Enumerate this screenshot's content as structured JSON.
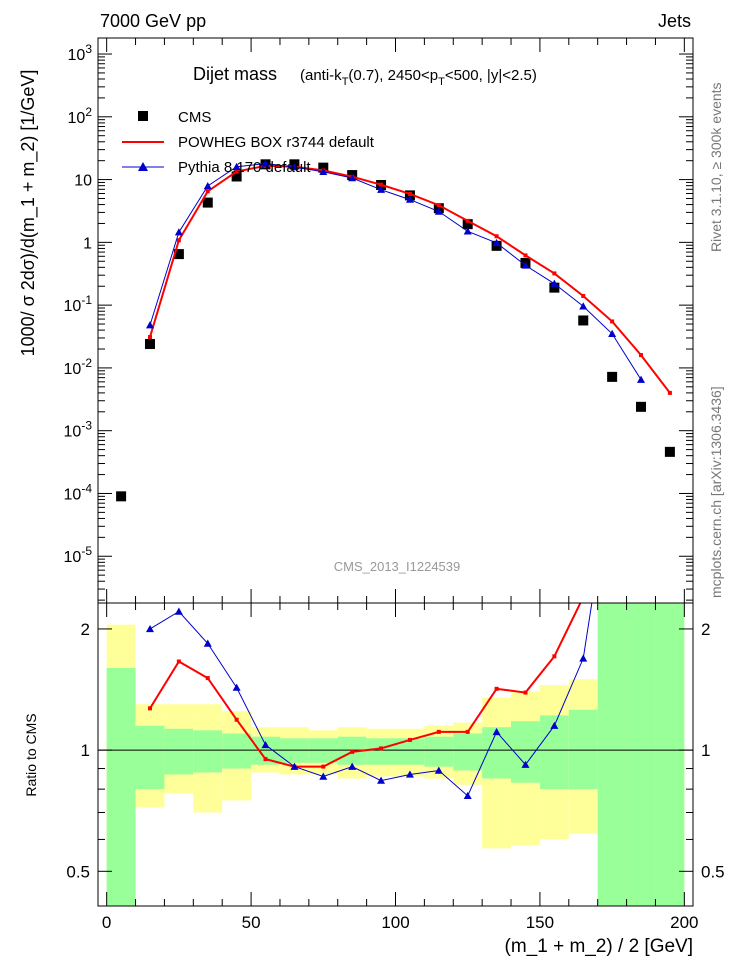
{
  "header": {
    "left": "7000 GeV pp",
    "right": "Jets"
  },
  "side_labels": {
    "top": "Rivet 3.1.10, ≥ 300k events",
    "bottom": "mcplots.cern.ch [arXiv:1306.3436]"
  },
  "colors": {
    "data": "#000000",
    "powheg": "#ff0000",
    "pythia": "#0000cc",
    "band_inner": "#99ff99",
    "band_outer": "#ffff99"
  },
  "chart_data": [
    {
      "type": "scatter",
      "title": "Dijet mass",
      "subtitle": "(anti-kT(0.7), 2450<pT<500, |y|<2.5)",
      "watermark": "CMS_2013_I1224539",
      "ylabel": "1000/σ 2dσ)/d(m_1 + m_2) [1/GeV]",
      "xlabel": "",
      "yscale": "log",
      "xlim": [
        -3,
        203
      ],
      "ylim": [
        1.8e-06,
        1800
      ],
      "y_ticks": [
        "10^-5",
        "10^-4",
        "10^-3",
        "10^-2",
        "10^-1",
        "1",
        "10",
        "10^2",
        "10^3"
      ],
      "legend": [
        "CMS",
        "POWHEG BOX r3744 default",
        "Pythia 8.170 default"
      ],
      "series": [
        {
          "name": "CMS",
          "x": [
            5,
            15,
            25,
            35,
            45,
            55,
            65,
            75,
            85,
            95,
            105,
            115,
            125,
            135,
            145,
            155,
            165,
            175,
            185,
            195
          ],
          "values": [
            9e-05,
            0.024,
            0.65,
            4.3,
            11.2,
            17.5,
            17.5,
            15.5,
            11.8,
            8.2,
            5.6,
            3.5,
            1.95,
            0.88,
            0.47,
            0.19,
            0.057,
            0.0072,
            0.0024,
            0.00046
          ]
        },
        {
          "name": "POWHEG BOX r3744 default",
          "x": [
            15,
            25,
            35,
            45,
            55,
            65,
            75,
            85,
            95,
            105,
            115,
            125,
            135,
            145,
            155,
            165,
            175,
            185,
            195
          ],
          "values": [
            0.031,
            1.08,
            6.5,
            13.4,
            16.6,
            16.0,
            14.0,
            11.1,
            8.3,
            5.9,
            3.9,
            2.2,
            1.25,
            0.62,
            0.32,
            0.14,
            0.055,
            0.016,
            0.004
          ]
        },
        {
          "name": "Pythia 8.170 default",
          "x": [
            15,
            25,
            35,
            45,
            55,
            65,
            75,
            85,
            95,
            105,
            115,
            125,
            135,
            145,
            155,
            165,
            175,
            185
          ],
          "values": [
            0.048,
            1.45,
            7.9,
            16.0,
            18.0,
            15.8,
            13.3,
            10.6,
            6.9,
            4.8,
            3.1,
            1.5,
            0.98,
            0.43,
            0.22,
            0.096,
            0.035,
            0.0065
          ]
        }
      ]
    },
    {
      "type": "line",
      "ylabel": "Ratio to CMS",
      "xlabel": "(m_1 + m_2) / 2 [GeV]",
      "yscale": "log",
      "xlim": [
        -3,
        203
      ],
      "ylim": [
        0.41,
        2.32
      ],
      "x_ticks": [
        "0",
        "50",
        "100",
        "150",
        "200"
      ],
      "y_ticks": [
        "0.5",
        "1",
        "2"
      ],
      "bins": [
        [
          0,
          10
        ],
        [
          10,
          20
        ],
        [
          20,
          30
        ],
        [
          30,
          40
        ],
        [
          40,
          50
        ],
        [
          50,
          60
        ],
        [
          60,
          70
        ],
        [
          70,
          80
        ],
        [
          80,
          90
        ],
        [
          90,
          100
        ],
        [
          100,
          110
        ],
        [
          110,
          120
        ],
        [
          120,
          130
        ],
        [
          130,
          140
        ],
        [
          140,
          150
        ],
        [
          150,
          160
        ],
        [
          160,
          170
        ],
        [
          170,
          180
        ],
        [
          180,
          190
        ],
        [
          190,
          200
        ]
      ],
      "band_inner": [
        [
          0.35,
          1.6
        ],
        [
          0.8,
          1.15
        ],
        [
          0.87,
          1.13
        ],
        [
          0.88,
          1.12
        ],
        [
          0.9,
          1.1
        ],
        [
          0.92,
          1.08
        ],
        [
          0.93,
          1.07
        ],
        [
          0.93,
          1.07
        ],
        [
          0.92,
          1.08
        ],
        [
          0.92,
          1.07
        ],
        [
          0.92,
          1.07
        ],
        [
          0.91,
          1.08
        ],
        [
          0.89,
          1.1
        ],
        [
          0.85,
          1.14
        ],
        [
          0.83,
          1.18
        ],
        [
          0.8,
          1.22
        ],
        [
          0.8,
          1.26
        ],
        [
          0.35,
          2.5
        ],
        [
          0.35,
          2.5
        ],
        [
          0.35,
          2.5
        ]
      ],
      "band_outer": [
        [
          0.35,
          2.05
        ],
        [
          0.72,
          1.3
        ],
        [
          0.78,
          1.3
        ],
        [
          0.7,
          1.3
        ],
        [
          0.75,
          1.25
        ],
        [
          0.88,
          1.14
        ],
        [
          0.87,
          1.14
        ],
        [
          0.87,
          1.12
        ],
        [
          0.85,
          1.14
        ],
        [
          0.86,
          1.13
        ],
        [
          0.86,
          1.13
        ],
        [
          0.85,
          1.15
        ],
        [
          0.82,
          1.17
        ],
        [
          0.57,
          1.35
        ],
        [
          0.58,
          1.4
        ],
        [
          0.6,
          1.45
        ],
        [
          0.62,
          1.5
        ],
        [
          0.35,
          2.5
        ],
        [
          0.35,
          2.5
        ],
        [
          0.35,
          2.5
        ]
      ],
      "series": [
        {
          "name": "POWHEG BOX r3744 default",
          "x": [
            15,
            25,
            35,
            45,
            55,
            65,
            75,
            85,
            95,
            105,
            115,
            125,
            135,
            145,
            155,
            165,
            175
          ],
          "values": [
            1.27,
            1.66,
            1.51,
            1.19,
            0.95,
            0.91,
            0.91,
            0.99,
            1.01,
            1.06,
            1.11,
            1.11,
            1.42,
            1.39,
            1.71,
            2.4,
            7.6
          ]
        },
        {
          "name": "Pythia 8.170 default",
          "x": [
            15,
            25,
            35,
            45,
            55,
            65,
            75,
            85,
            95,
            105,
            115,
            125,
            135,
            145,
            155,
            165,
            175
          ],
          "values": [
            2.0,
            2.21,
            1.84,
            1.43,
            1.03,
            0.91,
            0.86,
            0.91,
            0.84,
            0.87,
            0.89,
            0.77,
            1.11,
            0.92,
            1.15,
            1.69,
            4.9
          ]
        }
      ]
    }
  ]
}
